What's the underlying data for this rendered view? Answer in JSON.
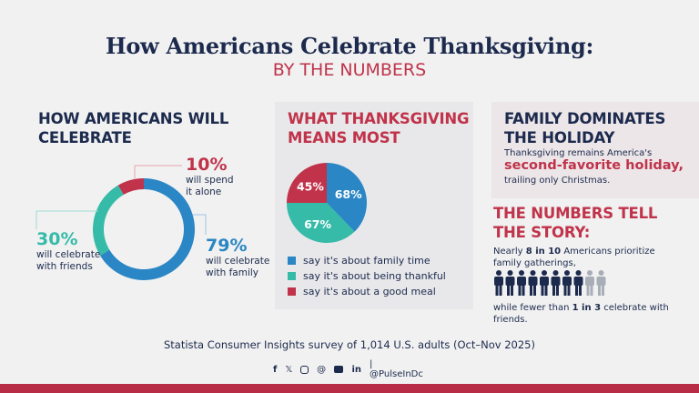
{
  "header": {
    "title": "How Americans Celebrate Thanksgiving:",
    "subtitle": "BY THE NUMBERS"
  },
  "colors": {
    "navy": "#1c2a4d",
    "red": "#c0334a",
    "blue": "#2a86c4",
    "teal": "#36bba8",
    "gray": "#a8adb8"
  },
  "chart_data": [
    {
      "type": "donut",
      "title": "HOW AMERICANS WILL CELEBRATE",
      "slices": [
        {
          "label": "will celebrate with family",
          "value": 79,
          "color": "#2a86c4"
        },
        {
          "label": "will celebrate with friends",
          "value": 30,
          "color": "#36bba8"
        },
        {
          "label": "will spend it alone",
          "value": 10,
          "color": "#c0334a"
        }
      ]
    },
    {
      "type": "pie",
      "title": "WHAT THANKSGIVING MEANS MOST",
      "slices": [
        {
          "label": "say it's about family time",
          "value": 68,
          "color": "#2a86c4"
        },
        {
          "label": "say it's about being thankful",
          "value": 67,
          "color": "#36bba8"
        },
        {
          "label": "say it's about a good meal",
          "value": 45,
          "color": "#c0334a"
        }
      ],
      "legend_placement": "bottom"
    }
  ],
  "donut_labels": {
    "alone_pct": "10%",
    "alone_l1": "will spend",
    "alone_l2": "it alone",
    "friends_pct": "30%",
    "friends_l1": "will celebrate",
    "friends_l2": "with friends",
    "family_pct": "79%",
    "family_l1": "will celebrate",
    "family_l2": "with family"
  },
  "pie_labels": [
    "68%",
    "67%",
    "45%"
  ],
  "right": {
    "title1": "FAMILY DOMINATES",
    "title2": "THE HOLIDAY",
    "line1": "Thanksgiving remains America's",
    "highlight": "second-favorite holiday,",
    "line3": "trailing only Christmas.",
    "story1": "THE NUMBERS TELL",
    "story2": "THE STORY:",
    "nearly_a": "Nearly ",
    "nearly_b": "8 in 10",
    "nearly_c": " Americans prioritize family gatherings,",
    "people_filled": 8,
    "people_total": 10,
    "fewer_a": "while fewer than ",
    "fewer_b": "1 in 3",
    "fewer_c": " celebrate with friends."
  },
  "footer": {
    "source": "Statista Consumer Insights survey of 1,014 U.S. adults (Oct–Nov 2025)",
    "handle": "| @PulseInDc",
    "icons": [
      "facebook-icon",
      "x-icon",
      "instagram-icon",
      "threads-icon",
      "youtube-icon",
      "linkedin-icon"
    ]
  }
}
